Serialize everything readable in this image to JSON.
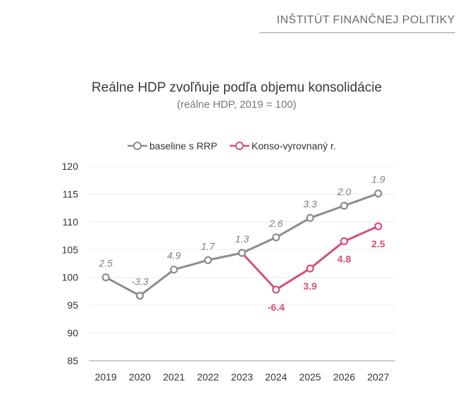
{
  "header": {
    "institution": "INŠTITÚT FINANČNEJ POLITIKY"
  },
  "chart_data": {
    "type": "line",
    "title": "Reálne HDP zvoľňuje podľa objemu konsolidácie",
    "subtitle": "(reálne HDP, 2019 = 100)",
    "xlabel": "",
    "ylabel": "",
    "ylim": [
      85,
      120
    ],
    "yticks": [
      85,
      90,
      95,
      100,
      105,
      110,
      115,
      120
    ],
    "categories": [
      "2019",
      "2020",
      "2021",
      "2022",
      "2023",
      "2024",
      "2025",
      "2026",
      "2027"
    ],
    "grid": true,
    "legend_position": "top",
    "series": [
      {
        "name": "baseline s RRP",
        "color": "#8c8c8c",
        "values": [
          100,
          96.7,
          101.4,
          103.1,
          104.4,
          107.2,
          110.7,
          112.9,
          115.1
        ],
        "labels": [
          "2.5",
          "-3.3",
          "4.9",
          "1.7",
          "1.3",
          "2.6",
          "3.3",
          "2.0",
          "1.9"
        ]
      },
      {
        "name": "Konso-vyrovnaný r.",
        "color": "#d44f7b",
        "values": [
          null,
          null,
          null,
          null,
          104.4,
          97.8,
          101.6,
          106.5,
          109.2
        ],
        "labels": [
          null,
          null,
          null,
          null,
          null,
          "-6.4",
          "3.9",
          "4.8",
          "2.5"
        ]
      }
    ]
  }
}
